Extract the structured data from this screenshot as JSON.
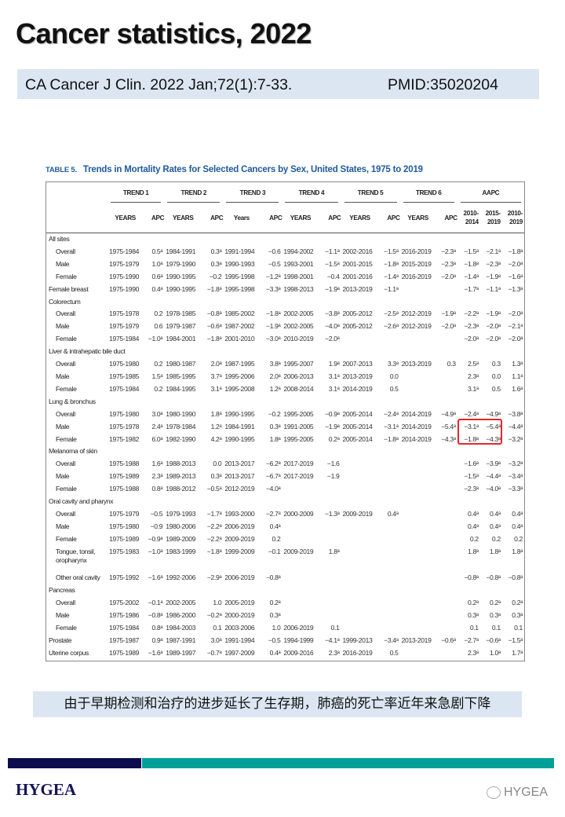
{
  "slide": {
    "title": "Cancer statistics, 2022",
    "citation": "CA Cancer J Clin. 2022 Jan;72(1):7-33.",
    "pmid": "PMID:35020204",
    "caption": "由于早期检测和治疗的进步延长了生存期，肺癌的死亡率近年来急剧下降",
    "logo": "HYGEA",
    "watermark": "HYGEA",
    "colors": {
      "title_box": "#dce6f2",
      "navy": "#0c0c4f",
      "teal": "#00a099",
      "highlight": "#e8262b",
      "table_title": "#1f5b9c"
    }
  },
  "table": {
    "label": "TABLE 5.",
    "title": "Trends in Mortality Rates for Selected Cancers by Sex, United States, 1975 to 2019",
    "groups": [
      "TREND 1",
      "TREND 2",
      "TREND 3",
      "TREND 4",
      "TREND 5",
      "TREND 6",
      "AAPC"
    ],
    "subheaders": [
      "YEARS",
      "APC",
      "YEARS",
      "APC",
      "Years",
      "APC",
      "YEARS",
      "APC",
      "YEARS",
      "APC",
      "YEARS",
      "APC",
      "2010-2014",
      "2015-2019",
      "2010-2019"
    ],
    "highlighted": "Lung & bronchus Male/Female AAPC 2010-2014 and 2015-2019",
    "rows": [
      {
        "label": "All sites",
        "indent": false,
        "cells": []
      },
      {
        "label": "Overall",
        "indent": true,
        "cells": [
          "1975-1984",
          "0.5ᵃ",
          "1984-1991",
          "0.3ᵃ",
          "1991-1994",
          "−0.6",
          "1994-2002",
          "−1.1ᵃ",
          "2002-2016",
          "−1.5ᵃ",
          "2016-2019",
          "−2.3ᵃ",
          "−1.5ᵃ",
          "−2.1ᵃ",
          "−1.8ᵃ"
        ]
      },
      {
        "label": "Male",
        "indent": true,
        "cells": [
          "1975-1979",
          "1.0ᵃ",
          "1979-1990",
          "0.3ᵃ",
          "1990-1993",
          "−0.5",
          "1993-2001",
          "−1.5ᵃ",
          "2001-2015",
          "−1.8ᵃ",
          "2015-2019",
          "−2.3ᵃ",
          "−1.8ᵃ",
          "−2.3ᵃ",
          "−2.0ᵃ"
        ]
      },
      {
        "label": "Female",
        "indent": true,
        "cells": [
          "1975-1990",
          "0.6ᵃ",
          "1990-1995",
          "−0.2",
          "1995-1998",
          "−1.2ᵃ",
          "1998-2001",
          "−0.4",
          "2001-2016",
          "−1.4ᵃ",
          "2016-2019",
          "−2.0ᵃ",
          "−1.4ᵃ",
          "−1.9ᵃ",
          "−1.6ᵃ"
        ]
      },
      {
        "label": "Female breast",
        "indent": false,
        "cells": [
          "1975-1990",
          "0.4ᵃ",
          "1990-1995",
          "−1.8ᵃ",
          "1995-1998",
          "−3.3ᵃ",
          "1998-2013",
          "−1.9ᵃ",
          "2013-2019",
          "−1.1ᵃ",
          "",
          "",
          "−1.7ᵃ",
          "−1.1ᵃ",
          "−1.3ᵃ"
        ]
      },
      {
        "label": "Colorectum",
        "indent": false,
        "cells": []
      },
      {
        "label": "Overall",
        "indent": true,
        "cells": [
          "1975-1978",
          "0.2",
          "1978-1985",
          "−0.8ᵃ",
          "1985-2002",
          "−1.8ᵃ",
          "2002-2005",
          "−3.8ᵃ",
          "2005-2012",
          "−2.5ᵃ",
          "2012-2019",
          "−1.9ᵃ",
          "−2.2ᵃ",
          "−1.9ᵃ",
          "−2.0ᵃ"
        ]
      },
      {
        "label": "Male",
        "indent": true,
        "cells": [
          "1975-1979",
          "0.6",
          "1979-1987",
          "−0.6ᵃ",
          "1987-2002",
          "−1.9ᵃ",
          "2002-2005",
          "−4.0ᵃ",
          "2005-2012",
          "−2.6ᵃ",
          "2012-2019",
          "−2.0ᵃ",
          "−2.3ᵃ",
          "−2.0ᵃ",
          "−2.1ᵃ"
        ]
      },
      {
        "label": "Female",
        "indent": true,
        "cells": [
          "1975-1984",
          "−1.0ᵃ",
          "1984-2001",
          "−1.8ᵃ",
          "2001-2010",
          "−3.0ᵃ",
          "2010-2019",
          "−2.0ᵃ",
          "",
          "",
          "",
          "",
          "−2.0ᵃ",
          "−2.0ᵃ",
          "−2.0ᵃ"
        ]
      },
      {
        "label": "Liver & intrahepatic bile duct",
        "indent": false,
        "cells": []
      },
      {
        "label": "Overall",
        "indent": true,
        "cells": [
          "1975-1980",
          "0.2",
          "1980-1987",
          "2.0ᵃ",
          "1987-1995",
          "3.8ᵃ",
          "1995-2007",
          "1.9ᵃ",
          "2007-2013",
          "3.3ᵃ",
          "2013-2019",
          "0.3",
          "2.5ᵃ",
          "0.3",
          "1.3ᵃ"
        ]
      },
      {
        "label": "Male",
        "indent": true,
        "cells": [
          "1975-1985",
          "1.5ᵃ",
          "1985-1995",
          "3.7ᵃ",
          "1995-2006",
          "2.0ᵃ",
          "2006-2013",
          "3.1ᵃ",
          "2013-2019",
          "0.0",
          "",
          "",
          "2.3ᵃ",
          "0.0",
          "1.1ᵃ"
        ]
      },
      {
        "label": "Female",
        "indent": true,
        "cells": [
          "1975-1984",
          "0.2",
          "1984-1995",
          "3.1ᵃ",
          "1995-2008",
          "1.2ᵃ",
          "2008-2014",
          "3.1ᵃ",
          "2014-2019",
          "0.5",
          "",
          "",
          "3.1ᵃ",
          "0.5",
          "1.6ᵃ"
        ]
      },
      {
        "label": "Lung & bronchus",
        "indent": false,
        "cells": []
      },
      {
        "label": "Overall",
        "indent": true,
        "cells": [
          "1975-1980",
          "3.0ᵃ",
          "1980-1990",
          "1.8ᵃ",
          "1990-1995",
          "−0.2",
          "1995-2005",
          "−0.9ᵃ",
          "2005-2014",
          "−2.4ᵃ",
          "2014-2019",
          "−4.9ᵃ",
          "−2.4ᵃ",
          "−4.9ᵃ",
          "−3.8ᵃ"
        ]
      },
      {
        "label": "Male",
        "indent": true,
        "cells": [
          "1975-1978",
          "2.4ᵃ",
          "1978-1984",
          "1.2ᵃ",
          "1984-1991",
          "0.3ᵃ",
          "1991-2005",
          "−1.9ᵃ",
          "2005-2014",
          "−3.1ᵃ",
          "2014-2019",
          "−5.4ᵃ",
          "−3.1ᵃ",
          "−5.4ᵃ",
          "−4.4ᵃ"
        ]
      },
      {
        "label": "Female",
        "indent": true,
        "cells": [
          "1975-1982",
          "6.0ᵃ",
          "1982-1990",
          "4.2ᵃ",
          "1990-1995",
          "1.8ᵃ",
          "1995-2005",
          "0.2ᵃ",
          "2005-2014",
          "−1.8ᵃ",
          "2014-2019",
          "−4.3ᵃ",
          "−1.8ᵃ",
          "−4.3ᵃ",
          "−3.2ᵃ"
        ]
      },
      {
        "label": "Melanoma of skin",
        "indent": false,
        "cells": []
      },
      {
        "label": "Overall",
        "indent": true,
        "cells": [
          "1975-1988",
          "1.6ᵃ",
          "1988-2013",
          "0.0",
          "2013-2017",
          "−6.2ᵃ",
          "2017-2019",
          "−1.6",
          "",
          "",
          "",
          "",
          "−1.6ᵃ",
          "−3.9ᵃ",
          "−3.2ᵃ"
        ]
      },
      {
        "label": "Male",
        "indent": true,
        "cells": [
          "1975-1989",
          "2.3ᵃ",
          "1989-2013",
          "0.3ᵃ",
          "2013-2017",
          "−6.7ᵃ",
          "2017-2019",
          "−1.9",
          "",
          "",
          "",
          "",
          "−1.5ᵃ",
          "−4.4ᵃ",
          "−3.4ᵃ"
        ]
      },
      {
        "label": "Female",
        "indent": true,
        "cells": [
          "1975-1988",
          "0.8ᵃ",
          "1988-2012",
          "−0.5ᵃ",
          "2012-2019",
          "−4.0ᵃ",
          "",
          "",
          "",
          "",
          "",
          "",
          "−2.3ᵃ",
          "−4.0ᵃ",
          "−3.3ᵃ"
        ]
      },
      {
        "label": "Oral cavity and pharynx",
        "indent": false,
        "cells": []
      },
      {
        "label": "Overall",
        "indent": true,
        "cells": [
          "1975-1979",
          "−0.5",
          "1979-1993",
          "−1.7ᵃ",
          "1993-2000",
          "−2.7ᵃ",
          "2000-2009",
          "−1.3ᵃ",
          "2009-2019",
          "0.4ᵃ",
          "",
          "",
          "0.4ᵃ",
          "0.4ᵃ",
          "0.4ᵃ"
        ]
      },
      {
        "label": "Male",
        "indent": true,
        "cells": [
          "1975-1980",
          "−0.9",
          "1980-2006",
          "−2.2ᵃ",
          "2006-2019",
          "0.4ᵃ",
          "",
          "",
          "",
          "",
          "",
          "",
          "0.4ᵃ",
          "0.4ᵃ",
          "0.4ᵃ"
        ]
      },
      {
        "label": "Female",
        "indent": true,
        "cells": [
          "1975-1989",
          "−0.9ᵃ",
          "1989-2009",
          "−2.2ᵃ",
          "2009-2019",
          "0.2",
          "",
          "",
          "",
          "",
          "",
          "",
          "0.2",
          "0.2",
          "0.2"
        ]
      },
      {
        "label": "Tongue, tonsil, oropharynx",
        "indent": true,
        "tall": true,
        "cells": [
          "1975-1983",
          "−1.0ᵃ",
          "1983-1999",
          "−1.8ᵃ",
          "1999-2009",
          "−0.1",
          "2009-2019",
          "1.8ᵃ",
          "",
          "",
          "",
          "",
          "1.8ᵃ",
          "1.8ᵃ",
          "1.8ᵃ"
        ]
      },
      {
        "label": "Other oral cavity",
        "indent": true,
        "cells": [
          "1975-1992",
          "−1.6ᵃ",
          "1992-2006",
          "−2.9ᵃ",
          "2006-2019",
          "−0.8ᵃ",
          "",
          "",
          "",
          "",
          "",
          "",
          "−0.8ᵃ",
          "−0.8ᵃ",
          "−0.8ᵃ"
        ]
      },
      {
        "label": "Pancreas",
        "indent": false,
        "cells": []
      },
      {
        "label": "Overall",
        "indent": true,
        "cells": [
          "1975-2002",
          "−0.1ᵃ",
          "2002-2005",
          "1.0",
          "2005-2019",
          "0.2ᵃ",
          "",
          "",
          "",
          "",
          "",
          "",
          "0.2ᵃ",
          "0.2ᵃ",
          "0.2ᵃ"
        ]
      },
      {
        "label": "Male",
        "indent": true,
        "cells": [
          "1975-1986",
          "−0.8ᵃ",
          "1986-2000",
          "−0.2ᵃ",
          "2000-2019",
          "0.3ᵃ",
          "",
          "",
          "",
          "",
          "",
          "",
          "0.3ᵃ",
          "0.3ᵃ",
          "0.3ᵃ"
        ]
      },
      {
        "label": "Female",
        "indent": true,
        "cells": [
          "1975-1984",
          "0.8ᵃ",
          "1984-2003",
          "0.1",
          "2003-2006",
          "1.0",
          "2006-2019",
          "0.1",
          "",
          "",
          "",
          "",
          "0.1",
          "0.1",
          "0.1"
        ]
      },
      {
        "label": "Prostate",
        "indent": false,
        "cells": [
          "1975-1987",
          "0.9ᵃ",
          "1987-1991",
          "3.0ᵃ",
          "1991-1994",
          "−0.5",
          "1994-1999",
          "−4.1ᵃ",
          "1999-2013",
          "−3.4ᵃ",
          "2013-2019",
          "−0.6ᵃ",
          "−2.7ᵃ",
          "−0.6ᵃ",
          "−1.5ᵃ"
        ]
      },
      {
        "label": "Uterine corpus",
        "indent": false,
        "cells": [
          "1975-1989",
          "−1.6ᵃ",
          "1989-1997",
          "−0.7ᵃ",
          "1997-2009",
          "0.4ᵃ",
          "2009-2016",
          "2.3ᵃ",
          "2016-2019",
          "0.5",
          "",
          "",
          "2.3ᵃ",
          "1.0ᵃ",
          "1.7ᵃ"
        ]
      }
    ]
  }
}
